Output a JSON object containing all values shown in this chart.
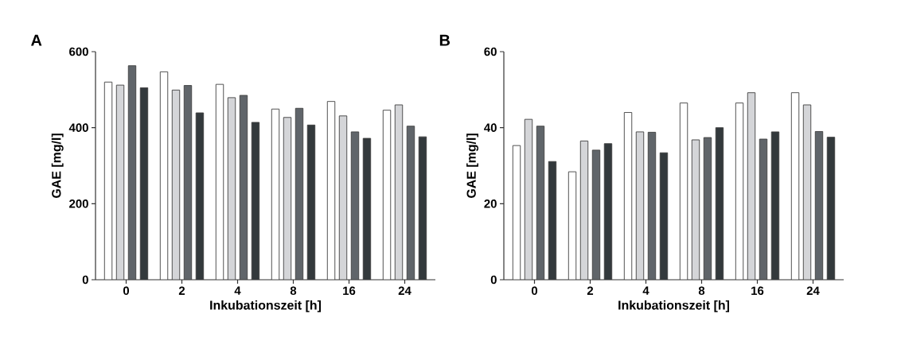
{
  "chart_data": [
    {
      "type": "bar",
      "title": "A",
      "xlabel": "Inkubationszeit [h]",
      "ylabel": "GAE [mg/l]",
      "categories": [
        "0",
        "2",
        "4",
        "8",
        "16",
        "24"
      ],
      "series": [
        {
          "color": "#ffffff",
          "values": [
            520,
            547,
            514,
            449,
            469,
            446
          ]
        },
        {
          "color": "#d4d5d8",
          "values": [
            512,
            499,
            479,
            427,
            431,
            460
          ]
        },
        {
          "color": "#60656a",
          "values": [
            563,
            511,
            485,
            451,
            389,
            404
          ]
        },
        {
          "color": "#33393c",
          "values": [
            505,
            439,
            414,
            407,
            372,
            376
          ]
        }
      ],
      "ylim": [
        0,
        600
      ],
      "yticks": [
        0,
        200,
        400,
        600
      ]
    },
    {
      "type": "bar",
      "title": "B",
      "xlabel": "Inkubationszeit [h]",
      "ylabel": "GAE [mg/l]",
      "categories": [
        "0",
        "2",
        "4",
        "8",
        "16",
        "24"
      ],
      "series": [
        {
          "color": "#ffffff",
          "values": [
            35.3,
            28.4,
            44.0,
            46.5,
            46.5,
            49.2
          ]
        },
        {
          "color": "#d4d5d8",
          "values": [
            42.2,
            36.5,
            38.9,
            36.8,
            49.2,
            46.0
          ]
        },
        {
          "color": "#60656a",
          "values": [
            40.4,
            34.1,
            38.8,
            37.4,
            37.0,
            39.0
          ]
        },
        {
          "color": "#33393c",
          "values": [
            31.1,
            35.8,
            33.4,
            40.0,
            38.9,
            37.5
          ]
        }
      ],
      "ylim": [
        0,
        60
      ],
      "yticks": [
        0,
        20,
        40,
        60
      ]
    }
  ]
}
